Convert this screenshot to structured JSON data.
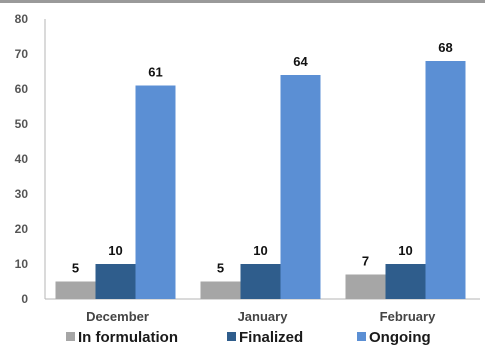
{
  "chart_data": {
    "type": "bar",
    "categories": [
      "December",
      "January",
      "February"
    ],
    "series": [
      {
        "name": "In formulation",
        "values": [
          5,
          5,
          7
        ],
        "color": "#a6a6a6"
      },
      {
        "name": "Finalized",
        "values": [
          10,
          10,
          10
        ],
        "color": "#2f5d8c"
      },
      {
        "name": "Ongoing",
        "values": [
          61,
          64,
          68
        ],
        "color": "#5b8fd4"
      }
    ],
    "ylim": [
      0,
      80
    ],
    "yticks": [
      0,
      10,
      20,
      30,
      40,
      50,
      60,
      70,
      80
    ],
    "grid": false,
    "legend": "bottom",
    "data_labels": true,
    "title": "",
    "xlabel": "",
    "ylabel": ""
  }
}
